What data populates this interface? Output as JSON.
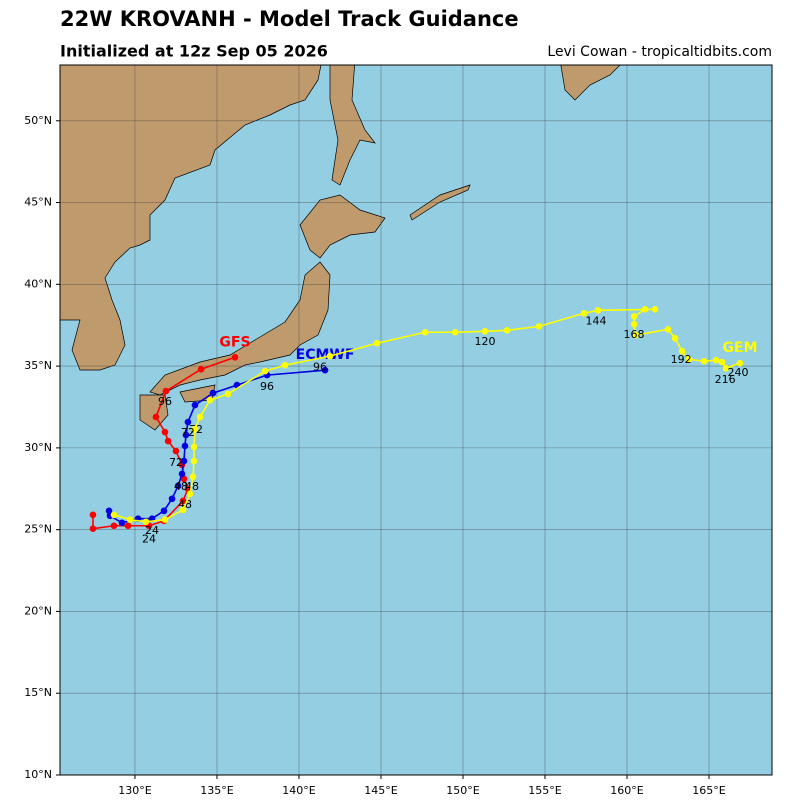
{
  "header": {
    "title": "22W KROVANH - Model Track Guidance",
    "subtitle": "Initialized at 12z Sep 05 2026",
    "credit": "Levi Cowan - tropicaltidbits.com"
  },
  "map": {
    "xlim": [
      125.43,
      168.84
    ],
    "ylim": [
      10,
      53.41
    ],
    "xticks": [
      {
        "value": 130,
        "label": "130°E"
      },
      {
        "value": 135,
        "label": "135°E"
      },
      {
        "value": 140,
        "label": "140°E"
      },
      {
        "value": 145,
        "label": "145°E"
      },
      {
        "value": 150,
        "label": "150°E"
      },
      {
        "value": 155,
        "label": "155°E"
      },
      {
        "value": 160,
        "label": "160°E"
      },
      {
        "value": 165,
        "label": "165°E"
      }
    ],
    "yticks": [
      {
        "value": 10,
        "label": "10°N"
      },
      {
        "value": 15,
        "label": "15°N"
      },
      {
        "value": 20,
        "label": "20°N"
      },
      {
        "value": 25,
        "label": "25°N"
      },
      {
        "value": 30,
        "label": "30°N"
      },
      {
        "value": 35,
        "label": "35°N"
      },
      {
        "value": 40,
        "label": "40°N"
      },
      {
        "value": 45,
        "label": "45°N"
      },
      {
        "value": 50,
        "label": "50°N"
      }
    ],
    "grid": true,
    "series": [
      {
        "name": "GFS",
        "color": "#ff0000",
        "lon": [
          136.1,
          134.03,
          131.89,
          131.28,
          131.83,
          132.02,
          132.5,
          132.87,
          132.99,
          133.23,
          132.93,
          131.77,
          130.86,
          129.58,
          128.72,
          127.44,
          127.44
        ],
        "lat": [
          35.54,
          34.81,
          33.47,
          31.89,
          30.97,
          30.42,
          29.81,
          28.96,
          28.11,
          27.5,
          26.76,
          25.54,
          25.24,
          25.24,
          25.24,
          25.06,
          25.91
        ],
        "hour_labels": [
          {
            "hour": 24,
            "lon": 130.86,
            "lat": 24.39
          },
          {
            "hour": 48,
            "lon": 133.05,
            "lat": 26.52
          },
          {
            "hour": 72,
            "lon": 132.5,
            "lat": 29.08
          },
          {
            "hour": 96,
            "lon": 131.83,
            "lat": 32.8
          }
        ]
      },
      {
        "name": "ECMWF",
        "color": "#0000e0",
        "lon": [
          141.59,
          138.05,
          136.22,
          134.76,
          133.66,
          133.23,
          133.11,
          133.05,
          132.99,
          132.87,
          132.63,
          132.26,
          131.77,
          131.04,
          130.19,
          129.21,
          128.48,
          128.42
        ],
        "lat": [
          34.75,
          34.45,
          33.84,
          33.35,
          32.62,
          31.58,
          30.79,
          30.12,
          29.2,
          28.41,
          27.68,
          26.89,
          26.15,
          25.67,
          25.67,
          25.42,
          25.85,
          26.15
        ],
        "hour_labels": [
          {
            "hour": 24,
            "lon": 131.04,
            "lat": 24.93
          },
          {
            "hour": 48,
            "lon": 133.48,
            "lat": 27.62
          },
          {
            "hour": 72,
            "lon": 133.72,
            "lat": 31.09
          },
          {
            "hour": 96,
            "lon": 138.05,
            "lat": 33.71
          }
        ]
      },
      {
        "name": "GEM",
        "color": "#ffff00",
        "lon": [
          166.89,
          166.04,
          165.8,
          165.43,
          164.7,
          163.78,
          163.36,
          162.93,
          162.5,
          160.55,
          160.43,
          160.43,
          161.1,
          161.71,
          158.23,
          157.38,
          154.64,
          152.69,
          151.34,
          149.52,
          147.69,
          144.76,
          141.89,
          139.15,
          137.93,
          135.67,
          134.58,
          133.97,
          133.66,
          133.6,
          133.6,
          133.54,
          133.36,
          132.93,
          131.83,
          130.67,
          129.7,
          128.72
        ],
        "lat": [
          35.18,
          34.87,
          35.24,
          35.36,
          35.3,
          35.42,
          35.91,
          36.7,
          37.25,
          36.89,
          37.56,
          38.04,
          38.47,
          38.47,
          38.41,
          38.23,
          37.43,
          37.19,
          37.13,
          37.07,
          37.07,
          36.4,
          35.61,
          35.06,
          34.69,
          33.29,
          32.92,
          31.89,
          31.15,
          30.06,
          29.2,
          28.23,
          27.19,
          26.21,
          25.61,
          25.48,
          25.61,
          25.91
        ],
        "hour_labels": [
          {
            "hour": 48,
            "lon": 132.81,
            "lat": 27.62
          },
          {
            "hour": 72,
            "lon": 133.23,
            "lat": 30.91
          },
          {
            "hour": 96,
            "lon": 141.28,
            "lat": 34.93
          },
          {
            "hour": 120,
            "lon": 151.34,
            "lat": 36.46
          },
          {
            "hour": 144,
            "lon": 158.11,
            "lat": 37.74
          },
          {
            "hour": 168,
            "lon": 160.43,
            "lat": 36.89
          },
          {
            "hour": 192,
            "lon": 163.3,
            "lat": 35.36
          },
          {
            "hour": 216,
            "lon": 165.98,
            "lat": 34.14
          },
          {
            "hour": 240,
            "lon": 166.77,
            "lat": 34.57
          }
        ]
      }
    ]
  }
}
